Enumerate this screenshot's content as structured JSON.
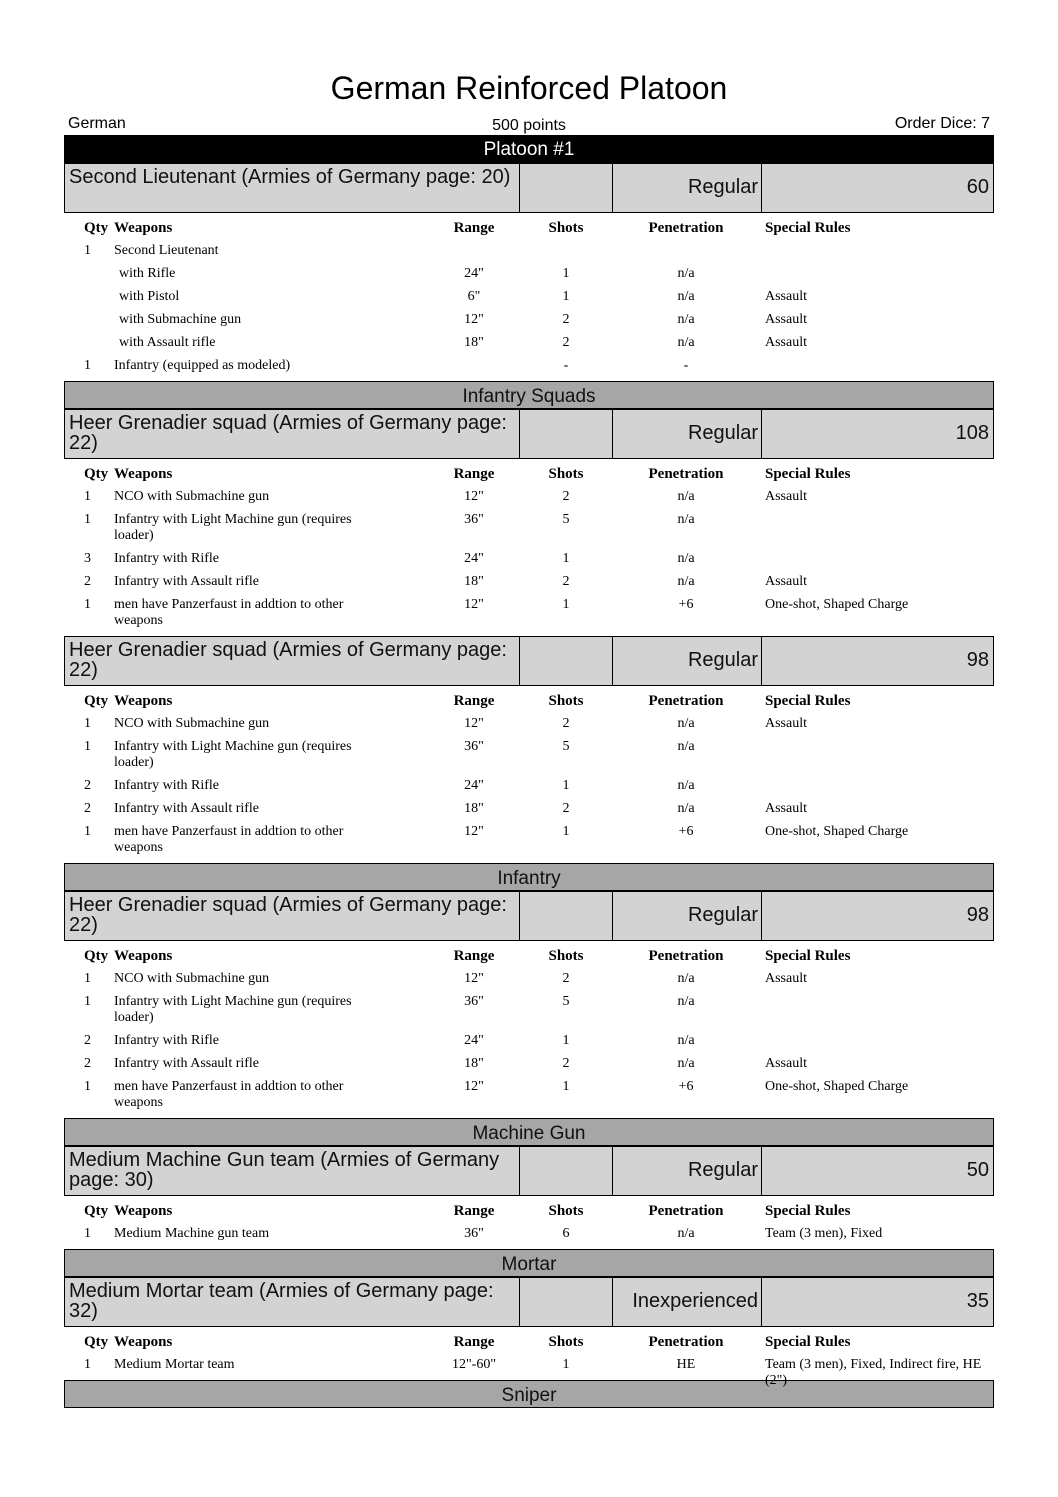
{
  "title": "German Reinforced Platoon",
  "army": "German",
  "points": "500 points",
  "order_dice": "Order Dice: 7",
  "columns": {
    "qty": "Qty",
    "weapons": "Weapons",
    "range": "Range",
    "shots": "Shots",
    "penetration": "Penetration",
    "special": "Special Rules"
  },
  "blocks": [
    {
      "type": "platoon",
      "label": "Platoon #1"
    },
    {
      "type": "unit",
      "name": "Second Lieutenant (Armies of Germany page: 20)",
      "experience": "Regular",
      "points": "60",
      "rows": [
        {
          "qty": "1",
          "weapon": "Second Lieutenant",
          "range": "",
          "shots": "",
          "pen": "",
          "special": ""
        },
        {
          "qty": "",
          "weapon": "with Rifle",
          "range": "24\"",
          "shots": "1",
          "pen": "n/a",
          "special": "",
          "indent": true
        },
        {
          "qty": "",
          "weapon": "with Pistol",
          "range": "6\"",
          "shots": "1",
          "pen": "n/a",
          "special": "Assault",
          "indent": true
        },
        {
          "qty": "",
          "weapon": "with Submachine gun",
          "range": "12\"",
          "shots": "2",
          "pen": "n/a",
          "special": "Assault",
          "indent": true
        },
        {
          "qty": "",
          "weapon": "with Assault rifle",
          "range": "18\"",
          "shots": "2",
          "pen": "n/a",
          "special": "Assault",
          "indent": true
        },
        {
          "qty": "1",
          "weapon": "Infantry (equipped as modeled)",
          "range": "",
          "shots": "-",
          "pen": "-",
          "special": ""
        }
      ]
    },
    {
      "type": "section",
      "label": "Infantry Squads"
    },
    {
      "type": "unit",
      "name": "Heer Grenadier squad (Armies of Germany page: 22)",
      "experience": "Regular",
      "points": "108",
      "rows": [
        {
          "qty": "1",
          "weapon": "NCO with Submachine gun",
          "range": "12\"",
          "shots": "2",
          "pen": "n/a",
          "special": "Assault"
        },
        {
          "qty": "1",
          "weapon": "Infantry with Light Machine gun (requires loader)",
          "range": "36\"",
          "shots": "5",
          "pen": "n/a",
          "special": ""
        },
        {
          "qty": "3",
          "weapon": "Infantry with Rifle",
          "range": "24\"",
          "shots": "1",
          "pen": "n/a",
          "special": ""
        },
        {
          "qty": "2",
          "weapon": "Infantry with Assault rifle",
          "range": "18\"",
          "shots": "2",
          "pen": "n/a",
          "special": "Assault"
        },
        {
          "qty": "1",
          "weapon": "men have Panzerfaust in addtion to other weapons",
          "range": "12\"",
          "shots": "1",
          "pen": "+6",
          "special": "One-shot, Shaped Charge"
        }
      ]
    },
    {
      "type": "unit",
      "name": "Heer Grenadier squad (Armies of Germany page: 22)",
      "experience": "Regular",
      "points": "98",
      "rows": [
        {
          "qty": "1",
          "weapon": "NCO with Submachine gun",
          "range": "12\"",
          "shots": "2",
          "pen": "n/a",
          "special": "Assault"
        },
        {
          "qty": "1",
          "weapon": "Infantry with Light Machine gun (requires loader)",
          "range": "36\"",
          "shots": "5",
          "pen": "n/a",
          "special": ""
        },
        {
          "qty": "2",
          "weapon": "Infantry with Rifle",
          "range": "24\"",
          "shots": "1",
          "pen": "n/a",
          "special": ""
        },
        {
          "qty": "2",
          "weapon": "Infantry with Assault rifle",
          "range": "18\"",
          "shots": "2",
          "pen": "n/a",
          "special": "Assault"
        },
        {
          "qty": "1",
          "weapon": "men have Panzerfaust in addtion to other weapons",
          "range": "12\"",
          "shots": "1",
          "pen": "+6",
          "special": "One-shot, Shaped Charge"
        }
      ]
    },
    {
      "type": "section",
      "label": "Infantry"
    },
    {
      "type": "unit",
      "name": "Heer Grenadier squad (Armies of Germany page: 22)",
      "experience": "Regular",
      "points": "98",
      "rows": [
        {
          "qty": "1",
          "weapon": "NCO with Submachine gun",
          "range": "12\"",
          "shots": "2",
          "pen": "n/a",
          "special": "Assault"
        },
        {
          "qty": "1",
          "weapon": "Infantry with Light Machine gun (requires loader)",
          "range": "36\"",
          "shots": "5",
          "pen": "n/a",
          "special": ""
        },
        {
          "qty": "2",
          "weapon": "Infantry with Rifle",
          "range": "24\"",
          "shots": "1",
          "pen": "n/a",
          "special": ""
        },
        {
          "qty": "2",
          "weapon": "Infantry with Assault rifle",
          "range": "18\"",
          "shots": "2",
          "pen": "n/a",
          "special": "Assault"
        },
        {
          "qty": "1",
          "weapon": "men have Panzerfaust in addtion to other weapons",
          "range": "12\"",
          "shots": "1",
          "pen": "+6",
          "special": "One-shot, Shaped Charge"
        }
      ]
    },
    {
      "type": "section",
      "label": "Machine Gun"
    },
    {
      "type": "unit",
      "name": "Medium Machine Gun team (Armies of Germany page: 30)",
      "experience": "Regular",
      "points": "50",
      "rows": [
        {
          "qty": "1",
          "weapon": "Medium Machine gun team",
          "range": "36\"",
          "shots": "6",
          "pen": "n/a",
          "special": "Team (3 men), Fixed"
        }
      ]
    },
    {
      "type": "section",
      "label": "Mortar"
    },
    {
      "type": "unit",
      "name": "Medium Mortar team (Armies of Germany page: 32)",
      "experience": "Inexperienced",
      "points": "35",
      "rows": [
        {
          "qty": "1",
          "weapon": "Medium Mortar team",
          "range": "12\"-60\"",
          "shots": "1",
          "pen": "HE",
          "special": "Team (3 men), Fixed, Indirect fire, HE (2\")"
        }
      ]
    },
    {
      "type": "section",
      "label": "Sniper"
    }
  ]
}
